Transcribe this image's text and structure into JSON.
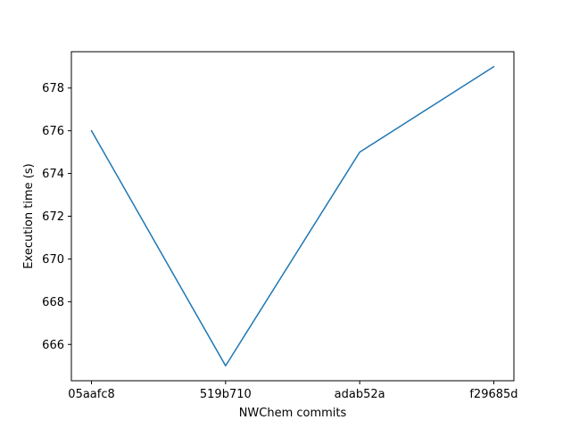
{
  "chart_data": {
    "type": "line",
    "title": "",
    "xlabel": "NWChem commits",
    "ylabel": "Execution time (s)",
    "categories": [
      "05aafc8",
      "519b710",
      "adab52a",
      "f29685d"
    ],
    "series": [
      {
        "values": [
          676,
          665,
          675,
          679
        ],
        "color": "#1f77b4"
      }
    ],
    "ylim": [
      664.3,
      679.7
    ],
    "yticks": [
      666,
      668,
      670,
      672,
      674,
      676,
      678
    ],
    "grid": false,
    "legend": "none"
  }
}
